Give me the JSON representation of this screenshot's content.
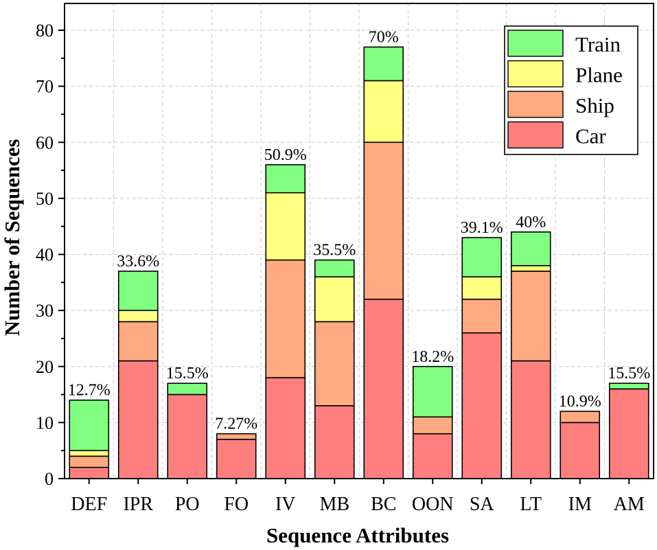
{
  "chart_data": {
    "type": "bar",
    "stacked": true,
    "xlabel": "Sequence Attributes",
    "ylabel": "Number of Sequences",
    "ylim": [
      0,
      82
    ],
    "yticks": [
      0,
      10,
      20,
      30,
      40,
      50,
      60,
      70,
      80
    ],
    "grid": true,
    "legend_position": "top-right",
    "categories": [
      "DEF",
      "IPR",
      "PO",
      "FO",
      "IV",
      "MB",
      "BC",
      "OON",
      "SA",
      "LT",
      "IM",
      "AM"
    ],
    "series": [
      {
        "name": "Car",
        "color": "#ff7f7f",
        "values": [
          2,
          21,
          15,
          7,
          18,
          13,
          32,
          8,
          26,
          21,
          10,
          16
        ]
      },
      {
        "name": "Ship",
        "color": "#ffaa80",
        "values": [
          2,
          7,
          0,
          1,
          21,
          15,
          28,
          3,
          6,
          16,
          2,
          0
        ]
      },
      {
        "name": "Plane",
        "color": "#ffff80",
        "values": [
          1,
          2,
          0,
          0,
          12,
          8,
          11,
          0,
          4,
          1,
          0,
          0
        ]
      },
      {
        "name": "Train",
        "color": "#80ff80",
        "values": [
          9,
          7,
          2,
          0,
          5,
          3,
          6,
          9,
          7,
          6,
          0,
          1
        ]
      }
    ],
    "bar_labels": [
      "12.7%",
      "33.6%",
      "15.5%",
      "7.27%",
      "50.9%",
      "35.5%",
      "70%",
      "18.2%",
      "39.1%",
      "40%",
      "10.9%",
      "15.5%"
    ],
    "legend_order": [
      "Train",
      "Plane",
      "Ship",
      "Car"
    ]
  }
}
